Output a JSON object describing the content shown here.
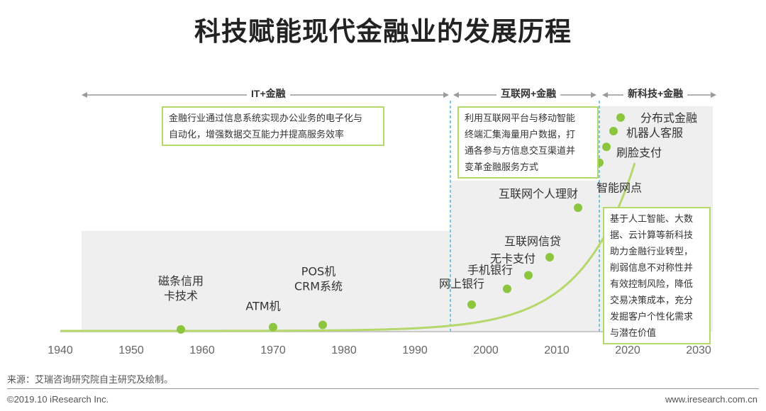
{
  "title": "科技赋能现代金融业的发展历程",
  "eras": [
    {
      "label": "IT+金融",
      "callout": [
        "金融行业通过信息系统实现办公业务的电子化与",
        "自动化，增强数据交互能力并提高服务效率"
      ]
    },
    {
      "label": "互联网+金融",
      "callout": [
        "利用互联网平台与移动智能",
        "终端汇集海量用户数据，打",
        "通各参与方信息交互渠道并",
        "变革金融服务方式"
      ]
    },
    {
      "label": "新科技+金融",
      "callout": [
        "基于人工智能、大数",
        "据、云计算等新科技",
        "助力金融行业转型，",
        "削弱信息不对称性并",
        "有效控制风险，降低",
        "交易决策成本，充分",
        "发掘客户个性化需求",
        "与潜在价值"
      ]
    }
  ],
  "chart_data": {
    "type": "line",
    "title": "科技赋能现代金融业的发展历程",
    "xlabel": "",
    "ylabel": "",
    "x_ticks": [
      "1940",
      "1950",
      "1960",
      "1970",
      "1980",
      "1990",
      "2000",
      "2010",
      "2020",
      "2030"
    ],
    "xlim": [
      1940,
      2030
    ],
    "ylim": [
      0,
      100
    ],
    "milestones": [
      {
        "year": 1957,
        "label": [
          "磁条信用",
          "卡技术"
        ],
        "value": 1
      },
      {
        "year": 1970,
        "label": [
          "ATM机"
        ],
        "value": 2
      },
      {
        "year": 1977,
        "label": [
          "POS机",
          "CRM系统"
        ],
        "value": 3
      },
      {
        "year": 1998,
        "label": [
          "网上银行"
        ],
        "value": 12
      },
      {
        "year": 2003,
        "label": [
          "手机银行"
        ],
        "value": 19
      },
      {
        "year": 2006,
        "label": [
          "无卡支付"
        ],
        "value": 25
      },
      {
        "year": 2009,
        "label": [
          "互联网信贷"
        ],
        "value": 33
      },
      {
        "year": 2013,
        "label": [
          "互联网个人理财"
        ],
        "value": 55
      },
      {
        "year": 2016,
        "label": [
          "智能网点"
        ],
        "value": 75
      },
      {
        "year": 2017,
        "label": [
          "刷脸支付"
        ],
        "value": 82
      },
      {
        "year": 2018,
        "label": [
          "机器人客服"
        ],
        "value": 89
      },
      {
        "year": 2019,
        "label": [
          "分布式金融"
        ],
        "value": 95
      }
    ],
    "era_boundaries": [
      1995,
      2016
    ],
    "colors": {
      "line": "#b4d86a",
      "point": "#8cc63f",
      "divider": "#4ab8d8",
      "shade": "#efefef",
      "axis": "#bbbbbb"
    }
  },
  "source": "来源：艾瑞咨询研究院自主研究及绘制。",
  "footer": {
    "left": "©2019.10 iResearch Inc.",
    "right": "www.iresearch.com.cn"
  }
}
